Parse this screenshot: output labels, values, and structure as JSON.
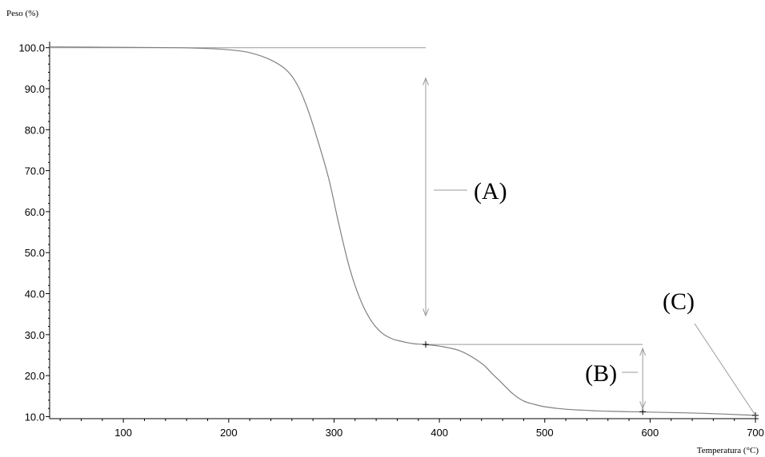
{
  "chart_data": {
    "type": "line",
    "ylabel": "Peso (%)",
    "xlabel": "Temperatura (°C)",
    "xlim": [
      30,
      703
    ],
    "ylim": [
      9.5,
      101.5
    ],
    "x_ticks": [
      100,
      200,
      300,
      400,
      500,
      600,
      700
    ],
    "x_tick_labels": [
      "100",
      "200",
      "300",
      "400",
      "500",
      "600",
      "700"
    ],
    "y_ticks": [
      10,
      20,
      30,
      40,
      50,
      60,
      70,
      80,
      90,
      100
    ],
    "y_tick_labels": [
      "10.0",
      "20.0",
      "30.0",
      "40.0",
      "50.0",
      "60.0",
      "70.0",
      "80.0",
      "90.0",
      "100.0"
    ],
    "grid": false,
    "series": [
      {
        "x": [
          30,
          100,
          150,
          180,
          200,
          220,
          240,
          255,
          265,
          275,
          285,
          295,
          305,
          315,
          325,
          335,
          345,
          355,
          365,
          375,
          385,
          400,
          420,
          440,
          450,
          460,
          470,
          480,
          490,
          500,
          520,
          550,
          580,
          600,
          650,
          700
        ],
        "y": [
          100.2,
          100.1,
          100.0,
          99.8,
          99.5,
          98.8,
          97.0,
          94.5,
          91.0,
          85.0,
          77.0,
          68.0,
          56.5,
          46.0,
          38.5,
          33.5,
          30.5,
          29.0,
          28.3,
          27.8,
          27.6,
          27.2,
          26.0,
          23.0,
          20.5,
          18.0,
          15.5,
          13.8,
          13.0,
          12.4,
          11.8,
          11.4,
          11.2,
          11.1,
          10.8,
          10.3
        ],
        "color": "#808080"
      }
    ],
    "reference_lines": [
      {
        "x": [
          30,
          387
        ],
        "y": [
          100.0,
          100.0
        ]
      },
      {
        "x": [
          387,
          593
        ],
        "y": [
          27.6,
          27.6
        ]
      }
    ],
    "markers": [
      {
        "x": 387,
        "y": 27.6
      },
      {
        "x": 593,
        "y": 11.2
      },
      {
        "x": 700,
        "y": 10.3
      }
    ],
    "annotations": [
      {
        "label": "(A)",
        "x_from": 387,
        "x_to": 387,
        "y_from": 100.0,
        "y_to": 27.6
      },
      {
        "label": "(B)",
        "x_from": 593,
        "x_to": 593,
        "y_from": 27.6,
        "y_to": 11.2
      },
      {
        "label": "(C)",
        "points_to": [
          700,
          10.3
        ]
      }
    ]
  }
}
